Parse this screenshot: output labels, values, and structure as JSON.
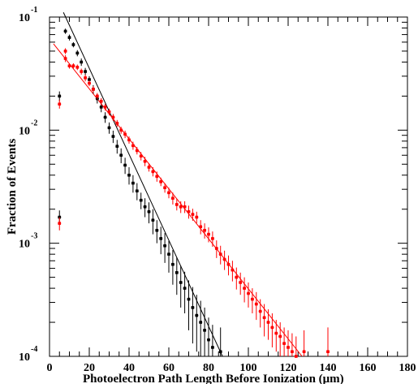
{
  "chart_data": {
    "type": "scatter",
    "title": "",
    "xlabel": "Photoelectron Path Length Before Ionization (μm)",
    "ylabel": "Fraction of Events",
    "x_ticks": [
      "0",
      "20",
      "40",
      "60",
      "80",
      "100",
      "120",
      "140",
      "160",
      "180"
    ],
    "y_ticks": [
      {
        "base": "10",
        "exp": "-4",
        "value": 0.0001
      },
      {
        "base": "10",
        "exp": "-3",
        "value": 0.001
      },
      {
        "base": "10",
        "exp": "-2",
        "value": 0.01
      },
      {
        "base": "10",
        "exp": "-1",
        "value": 0.1
      }
    ],
    "xlim": [
      0,
      180
    ],
    "ylim": [
      0.0001,
      0.1
    ],
    "yscale": "log",
    "grid": false,
    "legend": "none",
    "series": [
      {
        "color": "#000000",
        "error_bars": true,
        "points": [
          [
            5,
            0.0017,
            0.00025
          ],
          [
            5,
            0.02,
            0.002
          ],
          [
            8,
            0.075,
            0.004
          ],
          [
            10,
            0.066,
            0.004
          ],
          [
            12,
            0.057,
            0.003
          ],
          [
            14,
            0.048,
            0.003
          ],
          [
            16,
            0.04,
            0.003
          ],
          [
            18,
            0.033,
            0.0025
          ],
          [
            20,
            0.028,
            0.002
          ],
          [
            22,
            0.023,
            0.002
          ],
          [
            24,
            0.019,
            0.0018
          ],
          [
            26,
            0.016,
            0.0016
          ],
          [
            28,
            0.013,
            0.0014
          ],
          [
            30,
            0.0105,
            0.0012
          ],
          [
            32,
            0.0088,
            0.0011
          ],
          [
            34,
            0.0072,
            0.001
          ],
          [
            36,
            0.006,
            0.0009
          ],
          [
            38,
            0.0049,
            0.0008
          ],
          [
            40,
            0.004,
            0.0007
          ],
          [
            42,
            0.0034,
            0.0006
          ],
          [
            44,
            0.0029,
            0.0005
          ],
          [
            46,
            0.0024,
            0.0004
          ],
          [
            48,
            0.0021,
            0.0004
          ],
          [
            50,
            0.0019,
            0.0004
          ],
          [
            52,
            0.0016,
            0.0004
          ],
          [
            54,
            0.0013,
            0.0003
          ],
          [
            56,
            0.0011,
            0.0003
          ],
          [
            58,
            0.00095,
            0.00028
          ],
          [
            60,
            0.0008,
            0.00025
          ],
          [
            62,
            0.00065,
            0.00022
          ],
          [
            64,
            0.00055,
            0.0002
          ],
          [
            66,
            0.00045,
            0.00018
          ],
          [
            68,
            0.0004,
            0.00016
          ],
          [
            70,
            0.00032,
            0.00015
          ],
          [
            72,
            0.00027,
            0.00014
          ],
          [
            74,
            0.00023,
            0.00012
          ],
          [
            76,
            0.0002,
            0.00011
          ],
          [
            78,
            0.00017,
            0.0001
          ],
          [
            80,
            0.00014,
            8e-05
          ],
          [
            82,
            0.00012,
            7e-05
          ],
          [
            86,
            0.00011,
            7e-05
          ]
        ],
        "fit": {
          "x": [
            7,
            87
          ],
          "y": [
            0.11,
            0.0001
          ]
        }
      },
      {
        "color": "#ff0000",
        "error_bars": true,
        "points": [
          [
            5,
            0.0015,
            0.0002
          ],
          [
            5,
            0.017,
            0.0015
          ],
          [
            8,
            0.05,
            0.003
          ],
          [
            8,
            0.043,
            0.003
          ],
          [
            10,
            0.037,
            0.002
          ],
          [
            12,
            0.037,
            0.002
          ],
          [
            14,
            0.036,
            0.002
          ],
          [
            16,
            0.033,
            0.002
          ],
          [
            18,
            0.029,
            0.002
          ],
          [
            20,
            0.026,
            0.0015
          ],
          [
            22,
            0.023,
            0.0015
          ],
          [
            24,
            0.02,
            0.0013
          ],
          [
            26,
            0.018,
            0.0012
          ],
          [
            28,
            0.016,
            0.0011
          ],
          [
            30,
            0.0145,
            0.001
          ],
          [
            32,
            0.013,
            0.0009
          ],
          [
            34,
            0.0115,
            0.0008
          ],
          [
            36,
            0.01,
            0.0007
          ],
          [
            38,
            0.0092,
            0.0007
          ],
          [
            40,
            0.0082,
            0.0006
          ],
          [
            42,
            0.0073,
            0.0006
          ],
          [
            44,
            0.0066,
            0.0005
          ],
          [
            46,
            0.0059,
            0.0005
          ],
          [
            48,
            0.0053,
            0.0005
          ],
          [
            50,
            0.0047,
            0.0004
          ],
          [
            52,
            0.0043,
            0.0004
          ],
          [
            54,
            0.0039,
            0.0004
          ],
          [
            56,
            0.0035,
            0.0003
          ],
          [
            58,
            0.0031,
            0.0003
          ],
          [
            60,
            0.0028,
            0.0003
          ],
          [
            62,
            0.0025,
            0.0003
          ],
          [
            64,
            0.0022,
            0.00025
          ],
          [
            66,
            0.0021,
            0.00025
          ],
          [
            68,
            0.0021,
            0.00025
          ],
          [
            70,
            0.0019,
            0.00025
          ],
          [
            72,
            0.0018,
            0.00022
          ],
          [
            74,
            0.0017,
            0.0002
          ],
          [
            76,
            0.0014,
            0.0002
          ],
          [
            78,
            0.0013,
            0.0002
          ],
          [
            80,
            0.0012,
            0.00018
          ],
          [
            82,
            0.0011,
            0.00017
          ],
          [
            84,
            0.0009,
            0.00016
          ],
          [
            86,
            0.0008,
            0.00015
          ],
          [
            88,
            0.00072,
            0.00014
          ],
          [
            90,
            0.00065,
            0.00013
          ],
          [
            92,
            0.00058,
            0.00012
          ],
          [
            94,
            0.0005,
            0.00011
          ],
          [
            96,
            0.00045,
            0.0001
          ],
          [
            98,
            0.0004,
            0.0001
          ],
          [
            100,
            0.00036,
            9e-05
          ],
          [
            102,
            0.00032,
            8e-05
          ],
          [
            104,
            0.00029,
            8e-05
          ],
          [
            106,
            0.00025,
            7e-05
          ],
          [
            108,
            0.00022,
            7e-05
          ],
          [
            110,
            0.0002,
            6e-05
          ],
          [
            112,
            0.00018,
            6e-05
          ],
          [
            114,
            0.00016,
            5e-05
          ],
          [
            116,
            0.00015,
            5e-05
          ],
          [
            118,
            0.00013,
            5e-05
          ],
          [
            120,
            0.00012,
            5e-05
          ],
          [
            122,
            0.00011,
            5e-05
          ],
          [
            124,
            0.0001,
            5e-05
          ],
          [
            128,
            0.00011,
            6e-05
          ],
          [
            140,
            0.00011,
            7e-05
          ]
        ],
        "fit": {
          "x": [
            2,
            127
          ],
          "y": [
            0.058,
            0.0001
          ]
        }
      }
    ]
  }
}
